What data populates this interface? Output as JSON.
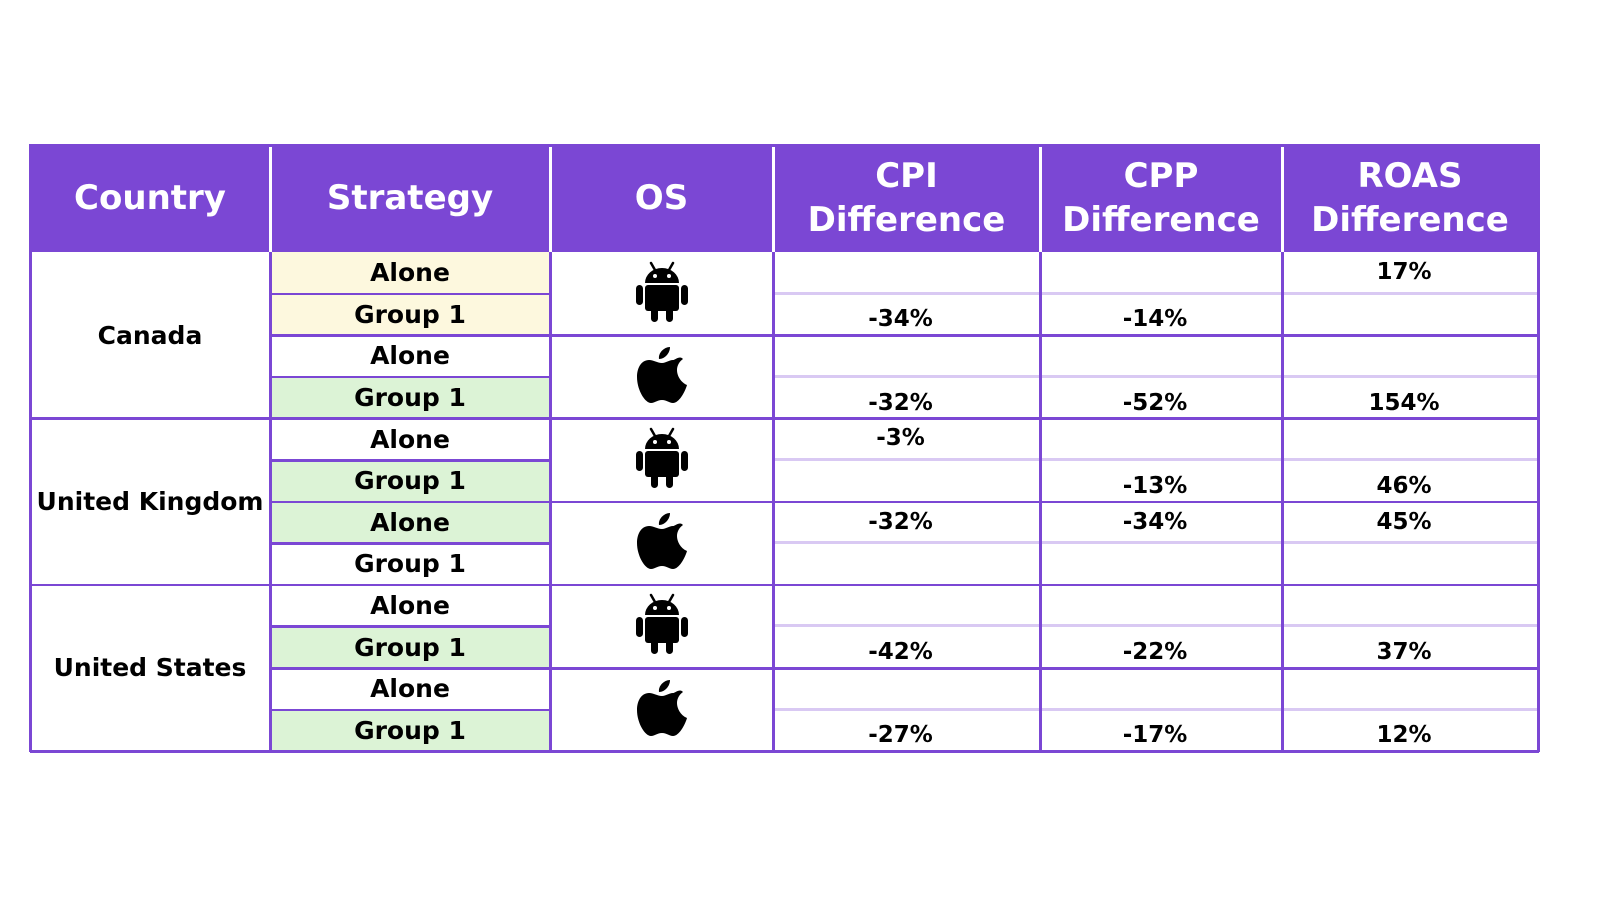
{
  "colors": {
    "header_bg": "#7b47d4",
    "border": "#7b47d4",
    "light_border": "#d9c9f3",
    "yellow_highlight": "#fdf8de",
    "green_highlight": "#dcf3d6",
    "white": "#ffffff"
  },
  "headers": {
    "country": "Country",
    "strategy": "Strategy",
    "os": "OS",
    "cpi": [
      "CPI",
      "Difference"
    ],
    "cpp": [
      "CPP",
      "Difference"
    ],
    "roas": [
      "ROAS",
      "Difference"
    ]
  },
  "countries": [
    {
      "name": "Canada",
      "os_groups": [
        {
          "os": "android-icon",
          "rows": [
            {
              "strategy": "Alone",
              "highlight": "yellow"
            },
            {
              "strategy": "Group 1",
              "highlight": "yellow"
            }
          ],
          "cpi": "-34%",
          "cpi_pos": "bottom",
          "cpp": "-14%",
          "cpp_pos": "bottom",
          "roas": "17%",
          "roas_pos": "top"
        },
        {
          "os": "apple-icon",
          "rows": [
            {
              "strategy": "Alone",
              "highlight": "none"
            },
            {
              "strategy": "Group 1",
              "highlight": "green"
            }
          ],
          "cpi": "-32%",
          "cpi_pos": "bottom",
          "cpp": "-52%",
          "cpp_pos": "bottom",
          "roas": "154%",
          "roas_pos": "bottom"
        }
      ]
    },
    {
      "name": "United Kingdom",
      "os_groups": [
        {
          "os": "android-icon",
          "rows": [
            {
              "strategy": "Alone",
              "highlight": "none"
            },
            {
              "strategy": "Group 1",
              "highlight": "green"
            }
          ],
          "cpi": "-3%",
          "cpi_pos": "top",
          "cpp": "-13%",
          "cpp_pos": "bottom",
          "roas": "46%",
          "roas_pos": "bottom"
        },
        {
          "os": "apple-icon",
          "rows": [
            {
              "strategy": "Alone",
              "highlight": "green"
            },
            {
              "strategy": "Group 1",
              "highlight": "none"
            }
          ],
          "cpi": "-32%",
          "cpi_pos": "top",
          "cpp": "-34%",
          "cpp_pos": "top",
          "roas": "45%",
          "roas_pos": "top"
        }
      ]
    },
    {
      "name": "United States",
      "os_groups": [
        {
          "os": "android-icon",
          "rows": [
            {
              "strategy": "Alone",
              "highlight": "none"
            },
            {
              "strategy": "Group 1",
              "highlight": "green"
            }
          ],
          "cpi": "-42%",
          "cpi_pos": "bottom",
          "cpp": "-22%",
          "cpp_pos": "bottom",
          "roas": "37%",
          "roas_pos": "bottom"
        },
        {
          "os": "apple-icon",
          "rows": [
            {
              "strategy": "Alone",
              "highlight": "none"
            },
            {
              "strategy": "Group 1",
              "highlight": "green"
            }
          ],
          "cpi": "-27%",
          "cpi_pos": "bottom",
          "cpp": "-17%",
          "cpp_pos": "bottom",
          "roas": "12%",
          "roas_pos": "bottom"
        }
      ]
    }
  ]
}
